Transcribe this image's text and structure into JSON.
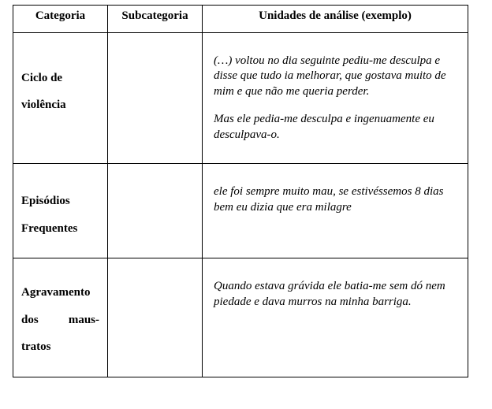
{
  "headers": {
    "categoria": "Categoria",
    "subcategoria": "Subcategoria",
    "unidades": "Unidades de análise (exemplo)"
  },
  "rows": {
    "r1": {
      "categoria_l1": "Ciclo de",
      "categoria_l2": "violência",
      "unidade_p1": "(…) voltou no dia seguinte pediu-me desculpa e disse que tudo ia melhorar, que gostava muito de mim e que não me queria perder.",
      "unidade_p2": "Mas ele pedia-me desculpa e ingenuamente eu desculpava-o."
    },
    "r2": {
      "categoria_l1": "Episódios",
      "categoria_l2": "Frequentes",
      "unidade_p1": "ele foi sempre muito mau, se estivéssemos 8 dias bem eu dizia que era milagre"
    },
    "r3": {
      "categoria_l1": "Agravamento",
      "categoria_l2a": "dos",
      "categoria_l2b": "maus-",
      "categoria_l3": "tratos",
      "unidade_p1": "Quando estava grávida ele batia-me sem dó nem piedade e dava murros na minha barriga."
    }
  }
}
